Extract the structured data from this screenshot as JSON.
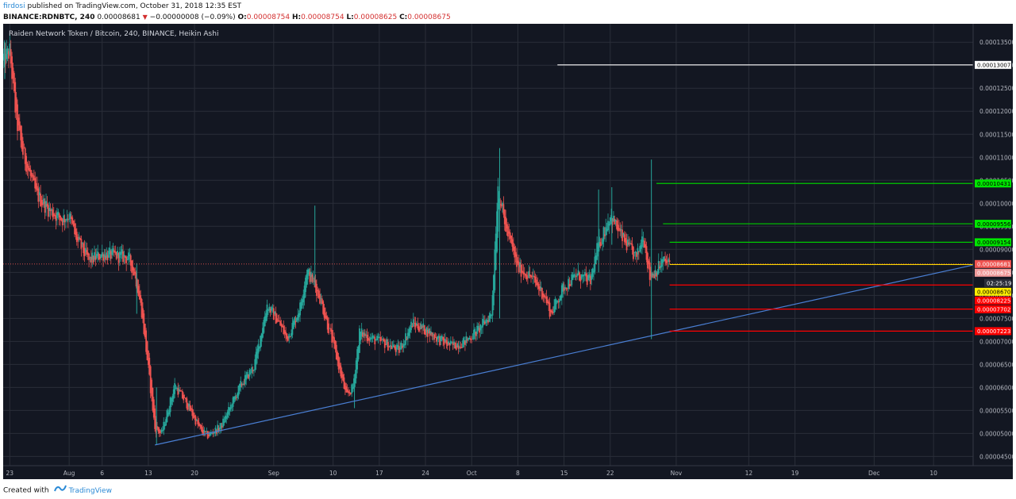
{
  "header": {
    "user": "firdosi",
    "published": " published on TradingView.com, October 31, 2018 12:35 EST",
    "symbol": "BINANCE:RDNBTC, 240",
    "last": "0.00008681",
    "change": "−0.00000008 (−0.09%)",
    "o_label": "O:",
    "o_value": "0.00008754",
    "h_label": "H:",
    "h_value": "0.00008754",
    "l_label": "L:",
    "l_value": "0.00008625",
    "c_label": "C:",
    "c_value": "0.00008675"
  },
  "footer": {
    "created_with": "Created with",
    "brand": "TradingView"
  },
  "colors": {
    "background": "#131722",
    "grid": "#2a2e39",
    "up": "#26a69a",
    "down": "#ef5350",
    "trendline": "#4a7fd4",
    "white_level": "#ffffff",
    "green_level": "#00c900",
    "red_level": "#ff0000",
    "yellow_level": "#ffd700"
  },
  "chart_data": {
    "type": "candlestick",
    "title": "Raiden Network Token / Bitcoin, 240, BINANCE, Heikin Ashi",
    "x_ticks": [
      "23",
      "Aug",
      "6",
      "13",
      "20",
      "Sep",
      "10",
      "17",
      "24",
      "Oct",
      "8",
      "15",
      "22",
      "Nov",
      "12",
      "19",
      "Dec",
      "10"
    ],
    "x_tick_dates": [
      "2018-07-23",
      "2018-08-01",
      "2018-08-06",
      "2018-08-13",
      "2018-08-20",
      "2018-09-01",
      "2018-09-10",
      "2018-09-17",
      "2018-09-24",
      "2018-10-01",
      "2018-10-08",
      "2018-10-15",
      "2018-10-22",
      "2018-11-01",
      "2018-11-12",
      "2018-11-19",
      "2018-12-01",
      "2018-12-10"
    ],
    "x_range": [
      "2018-07-22",
      "2018-12-16"
    ],
    "y_ticks": [
      "0.00013500",
      "0.00013000",
      "0.00012500",
      "0.00012000",
      "0.00011500",
      "0.00011000",
      "0.00010500",
      "0.00010000",
      "0.00009500",
      "0.00009000",
      "0.00008500",
      "0.00008000",
      "0.00007500",
      "0.00007000",
      "0.00006500",
      "0.00006000",
      "0.00005500",
      "0.00005000",
      "0.00004500"
    ],
    "ylim": [
      4.3e-05,
      0.000139
    ],
    "grid": true,
    "price_path": [
      {
        "x": "2018-07-22",
        "y": 0.000131
      },
      {
        "x": "2018-07-23",
        "y": 0.000133
      },
      {
        "x": "2018-07-24",
        "y": 0.000118
      },
      {
        "x": "2018-07-25",
        "y": 0.000111
      },
      {
        "x": "2018-07-27",
        "y": 0.000102
      },
      {
        "x": "2018-07-29",
        "y": 9.85e-05
      },
      {
        "x": "2018-07-31",
        "y": 9.65e-05
      },
      {
        "x": "2018-08-01",
        "y": 9.75e-05
      },
      {
        "x": "2018-08-02",
        "y": 9.25e-05
      },
      {
        "x": "2018-08-04",
        "y": 8.75e-05
      },
      {
        "x": "2018-08-06",
        "y": 8.9e-05
      },
      {
        "x": "2018-08-09",
        "y": 8.85e-05
      },
      {
        "x": "2018-08-10",
        "y": 8.8e-05
      },
      {
        "x": "2018-08-11",
        "y": 8.45e-05
      },
      {
        "x": "2018-08-12",
        "y": 7.65e-05
      },
      {
        "x": "2018-08-13",
        "y": 6.4e-05
      },
      {
        "x": "2018-08-14",
        "y": 5.1e-05
      },
      {
        "x": "2018-08-15",
        "y": 5e-05
      },
      {
        "x": "2018-08-17",
        "y": 6.05e-05
      },
      {
        "x": "2018-08-19",
        "y": 5.6e-05
      },
      {
        "x": "2018-08-21",
        "y": 5.05e-05
      },
      {
        "x": "2018-08-22",
        "y": 4.95e-05
      },
      {
        "x": "2018-08-24",
        "y": 5.15e-05
      },
      {
        "x": "2018-08-27",
        "y": 6.05e-05
      },
      {
        "x": "2018-08-29",
        "y": 6.45e-05
      },
      {
        "x": "2018-08-31",
        "y": 7.8e-05
      },
      {
        "x": "2018-09-02",
        "y": 7.35e-05
      },
      {
        "x": "2018-09-03",
        "y": 7.05e-05
      },
      {
        "x": "2018-09-05",
        "y": 7.75e-05
      },
      {
        "x": "2018-09-06",
        "y": 8.55e-05
      },
      {
        "x": "2018-09-07",
        "y": 8.3e-05
      },
      {
        "x": "2018-09-08",
        "y": 7.95e-05
      },
      {
        "x": "2018-09-10",
        "y": 6.95e-05
      },
      {
        "x": "2018-09-12",
        "y": 5.8e-05
      },
      {
        "x": "2018-09-13",
        "y": 6e-05
      },
      {
        "x": "2018-09-14",
        "y": 7.2e-05
      },
      {
        "x": "2018-09-16",
        "y": 7.05e-05
      },
      {
        "x": "2018-09-18",
        "y": 6.95e-05
      },
      {
        "x": "2018-09-20",
        "y": 6.8e-05
      },
      {
        "x": "2018-09-22",
        "y": 7.4e-05
      },
      {
        "x": "2018-09-24",
        "y": 7.25e-05
      },
      {
        "x": "2018-09-26",
        "y": 7.05e-05
      },
      {
        "x": "2018-09-28",
        "y": 6.9e-05
      },
      {
        "x": "2018-09-30",
        "y": 7e-05
      },
      {
        "x": "2018-10-02",
        "y": 7.25e-05
      },
      {
        "x": "2018-10-04",
        "y": 7.6e-05
      },
      {
        "x": "2018-10-05",
        "y": 0.000104
      },
      {
        "x": "2018-10-06",
        "y": 9.55e-05
      },
      {
        "x": "2018-10-08",
        "y": 8.6e-05
      },
      {
        "x": "2018-10-10",
        "y": 8.4e-05
      },
      {
        "x": "2018-10-12",
        "y": 8e-05
      },
      {
        "x": "2018-10-13",
        "y": 7.6e-05
      },
      {
        "x": "2018-10-15",
        "y": 8.2e-05
      },
      {
        "x": "2018-10-17",
        "y": 8.45e-05
      },
      {
        "x": "2018-10-19",
        "y": 8.3e-05
      },
      {
        "x": "2018-10-20",
        "y": 9e-05
      },
      {
        "x": "2018-10-22",
        "y": 9.75e-05
      },
      {
        "x": "2018-10-24",
        "y": 9.2e-05
      },
      {
        "x": "2018-10-26",
        "y": 8.8e-05
      },
      {
        "x": "2018-10-27",
        "y": 9.35e-05
      },
      {
        "x": "2018-10-28",
        "y": 8.4e-05
      },
      {
        "x": "2018-10-29",
        "y": 8.55e-05
      },
      {
        "x": "2018-10-30",
        "y": 8.75e-05
      },
      {
        "x": "2018-10-31",
        "y": 8.68e-05
      }
    ],
    "spikes": [
      {
        "x": "2018-07-22",
        "high": 0.000135,
        "low": 0.000127
      },
      {
        "x": "2018-08-11",
        "high": 8.7e-05,
        "low": 7.6e-05
      },
      {
        "x": "2018-08-14",
        "high": 6e-05,
        "low": 4.75e-05
      },
      {
        "x": "2018-09-07",
        "high": 9.95e-05,
        "low": 8.2e-05
      },
      {
        "x": "2018-09-13",
        "high": 6.2e-05,
        "low": 5.55e-05
      },
      {
        "x": "2018-10-05",
        "high": 0.000112,
        "low": 7.5e-05
      },
      {
        "x": "2018-10-20",
        "high": 0.000103,
        "low": 8.5e-05
      },
      {
        "x": "2018-10-22",
        "high": 0.0001035,
        "low": 9.1e-05
      },
      {
        "x": "2018-10-28",
        "high": 0.0001095,
        "low": 7.05e-05
      }
    ],
    "trendline": {
      "x1": "2018-08-14",
      "y1": 4.75e-05,
      "x2": "2018-12-16",
      "y2": 8.66e-05
    },
    "current_price_line": 8.681e-05,
    "levels": [
      {
        "label": "0.00013007",
        "value": 0.00013007,
        "type": "white",
        "from": "2018-10-14"
      },
      {
        "label": "0.00010431",
        "value": 0.00010431,
        "type": "green",
        "from": "2018-10-29"
      },
      {
        "label": "0.00009556",
        "value": 9.556e-05,
        "type": "green",
        "from": "2018-10-30"
      },
      {
        "label": "0.00009154",
        "value": 9.154e-05,
        "type": "green",
        "from": "2018-10-31"
      },
      {
        "label": "0.00008670",
        "value": 8.67e-05,
        "type": "yellow",
        "from": "2018-10-31"
      },
      {
        "label": "0.00008225",
        "value": 8.225e-05,
        "type": "red",
        "from": "2018-10-31"
      },
      {
        "label": "0.00007702",
        "value": 7.702e-05,
        "type": "red",
        "from": "2018-10-31"
      },
      {
        "label": "0.00007223",
        "value": 7.223e-05,
        "type": "red",
        "from": "2018-10-31"
      }
    ],
    "price_badges": [
      {
        "label": "0.00008681",
        "value": 8.681e-05,
        "type": "last"
      },
      {
        "label": "0.00008675",
        "value": 8.675e-05,
        "type": "close"
      }
    ],
    "countdown": "02:25:19"
  }
}
